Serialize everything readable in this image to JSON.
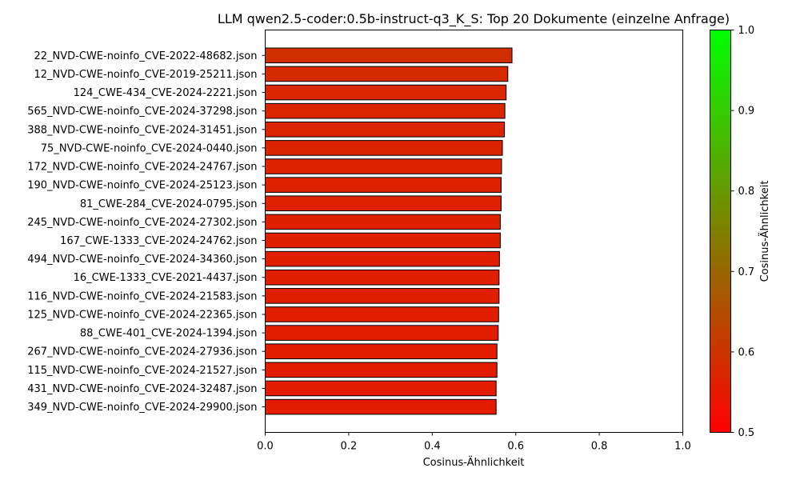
{
  "chart_data": {
    "type": "bar",
    "orientation": "horizontal",
    "title": "LLM qwen2.5-coder:0.5b-instruct-q3_K_S: Top 20 Dokumente (einzelne Anfrage)",
    "xlabel": "Cosinus-Ähnlichkeit",
    "ylabel": "",
    "xlim": [
      0,
      1.0
    ],
    "x_ticks": [
      "0.0",
      "0.2",
      "0.4",
      "0.6",
      "0.8",
      "1.0"
    ],
    "grid": false,
    "bar_edge_color": "#000000",
    "categories": [
      "22_NVD-CWE-noinfo_CVE-2022-48682.json",
      "12_NVD-CWE-noinfo_CVE-2019-25211.json",
      "124_CWE-434_CVE-2024-2221.json",
      "565_NVD-CWE-noinfo_CVE-2024-37298.json",
      "388_NVD-CWE-noinfo_CVE-2024-31451.json",
      "75_NVD-CWE-noinfo_CVE-2024-0440.json",
      "172_NVD-CWE-noinfo_CVE-2024-24767.json",
      "190_NVD-CWE-noinfo_CVE-2024-25123.json",
      "81_CWE-284_CVE-2024-0795.json",
      "245_NVD-CWE-noinfo_CVE-2024-27302.json",
      "167_CWE-1333_CVE-2024-24762.json",
      "494_NVD-CWE-noinfo_CVE-2024-34360.json",
      "16_CWE-1333_CVE-2021-4437.json",
      "116_NVD-CWE-noinfo_CVE-2024-21583.json",
      "125_NVD-CWE-noinfo_CVE-2024-22365.json",
      "88_CWE-401_CVE-2024-1394.json",
      "267_NVD-CWE-noinfo_CVE-2024-27936.json",
      "115_NVD-CWE-noinfo_CVE-2024-21527.json",
      "431_NVD-CWE-noinfo_CVE-2024-32487.json",
      "349_NVD-CWE-noinfo_CVE-2024-29900.json"
    ],
    "values": [
      0.591,
      0.581,
      0.577,
      0.574,
      0.573,
      0.568,
      0.566,
      0.565,
      0.565,
      0.563,
      0.563,
      0.561,
      0.56,
      0.56,
      0.559,
      0.558,
      0.555,
      0.555,
      0.553,
      0.553
    ],
    "colorbar": {
      "label": "Cosinus-Ähnlichkeit",
      "range": [
        0.5,
        1.0
      ],
      "ticks": [
        "0.5",
        "0.6",
        "0.7",
        "0.8",
        "0.9",
        "1.0"
      ],
      "color_low": "#ff0000",
      "color_high": "#00ff00"
    }
  }
}
